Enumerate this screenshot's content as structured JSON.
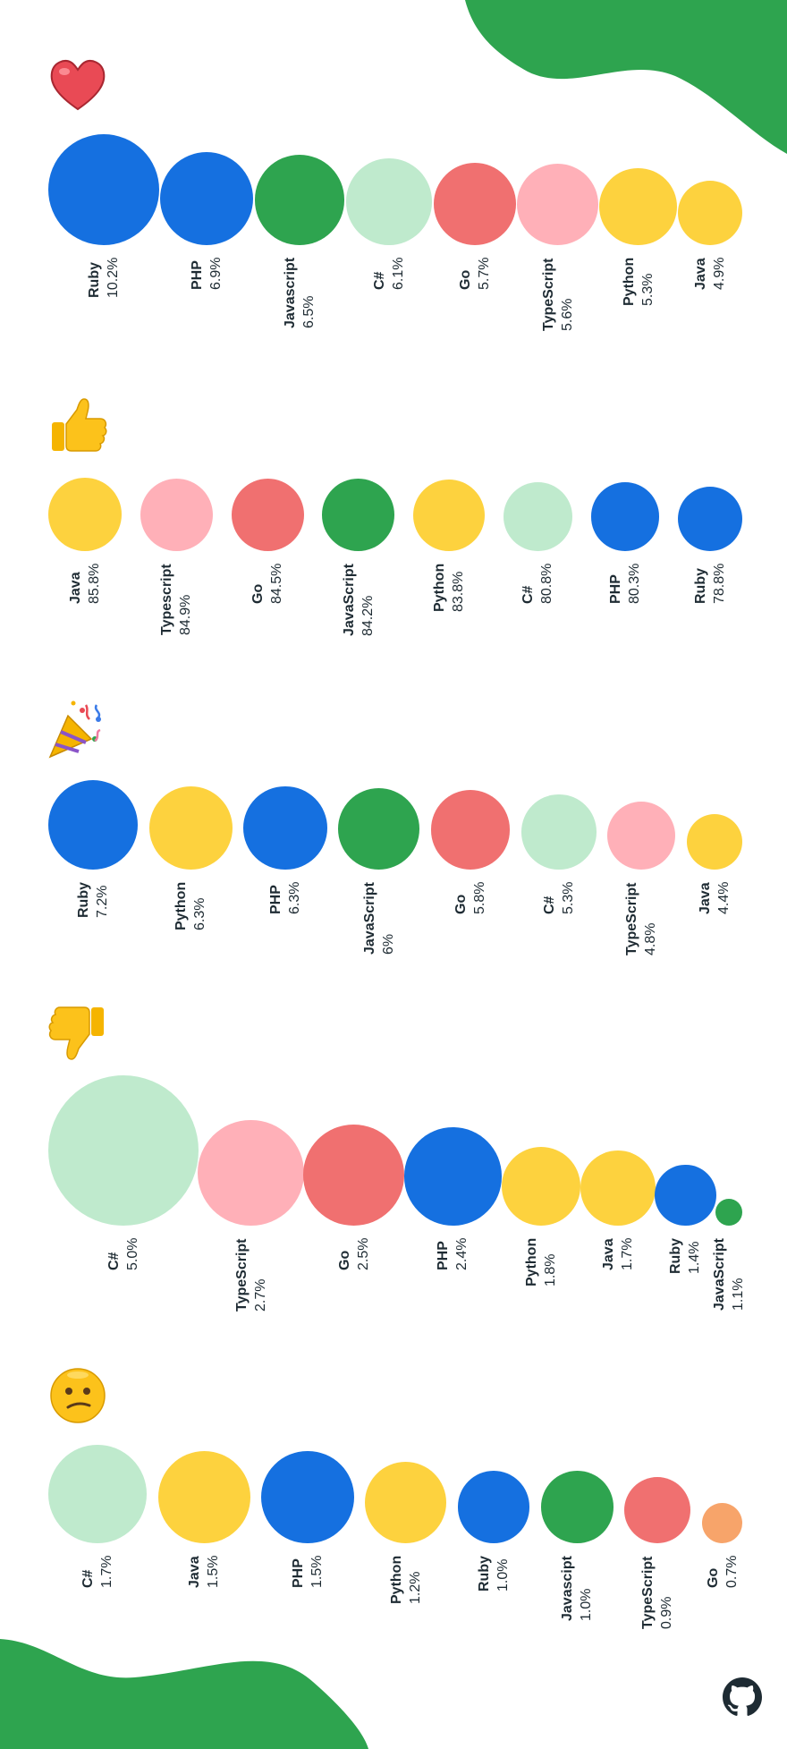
{
  "colors": {
    "background": "#ffffff",
    "blob": "#2ea44f",
    "text": "#1e2b33",
    "palette": {
      "blue": "#1570e0",
      "green": "#2ea44f",
      "mint": "#bfeacd",
      "red": "#f07070",
      "pink": "#ffb0b8",
      "yellow": "#fdd23e",
      "orange": "#f7a46a"
    }
  },
  "footer": {
    "logo_icon": "github-logo-icon"
  },
  "chart_data": [
    {
      "type": "bubble",
      "icon": "heart-icon",
      "categories": [
        "Ruby",
        "PHP",
        "Javascript",
        "C#",
        "Go",
        "TypeScript",
        "Python",
        "Java"
      ],
      "values": [
        10.2,
        6.9,
        6.5,
        6.1,
        5.7,
        5.6,
        5.3,
        4.9
      ],
      "value_labels": [
        "10.2%",
        "6.9%",
        "6.5%",
        "6.1%",
        "5.7%",
        "5.6%",
        "5.3%",
        "4.9%"
      ],
      "colors": [
        "blue",
        "blue",
        "green",
        "mint",
        "red",
        "pink",
        "yellow",
        "yellow"
      ]
    },
    {
      "type": "bubble",
      "icon": "thumbs-up-icon",
      "categories": [
        "Java",
        "Typescript",
        "Go",
        "JavaScript",
        "Python",
        "C#",
        "PHP",
        "Ruby"
      ],
      "values": [
        85.8,
        84.9,
        84.5,
        84.2,
        83.8,
        80.8,
        80.3,
        78.8
      ],
      "value_labels": [
        "85.8%",
        "84.9%",
        "84.5%",
        "84.2%",
        "83.8%",
        "80.8%",
        "80.3%",
        "78.8%"
      ],
      "colors": [
        "yellow",
        "pink",
        "red",
        "green",
        "yellow",
        "mint",
        "blue",
        "blue"
      ]
    },
    {
      "type": "bubble",
      "icon": "party-popper-icon",
      "categories": [
        "Ruby",
        "Python",
        "PHP",
        "JavaScript",
        "Go",
        "C#",
        "TypeScript",
        "Java"
      ],
      "values": [
        7.2,
        6.3,
        6.3,
        6,
        5.8,
        5.3,
        4.8,
        4.4
      ],
      "value_labels": [
        "7.2%",
        "6.3%",
        "6.3%",
        "6%",
        "5.8%",
        "5.3%",
        "4.8%",
        "4.4%"
      ],
      "colors": [
        "blue",
        "yellow",
        "blue",
        "green",
        "red",
        "mint",
        "pink",
        "yellow"
      ]
    },
    {
      "type": "bubble",
      "icon": "thumbs-down-icon",
      "categories": [
        "C#",
        "TypeScript",
        "Go",
        "PHP",
        "Python",
        "Java",
        "Ruby",
        "JavaScript"
      ],
      "values": [
        5.0,
        2.7,
        2.5,
        2.4,
        1.8,
        1.7,
        1.4,
        1.1
      ],
      "value_labels": [
        "5.0%",
        "2.7%",
        "2.5%",
        "2.4%",
        "1.8%",
        "1.7%",
        "1.4%",
        "1.1%"
      ],
      "colors": [
        "mint",
        "pink",
        "red",
        "blue",
        "yellow",
        "yellow",
        "blue",
        "green"
      ]
    },
    {
      "type": "bubble",
      "icon": "confused-face-icon",
      "categories": [
        "C#",
        "Java",
        "PHP",
        "Python",
        "Ruby",
        "Javascipt",
        "TypeScript",
        "Go"
      ],
      "values": [
        1.7,
        1.5,
        1.5,
        1.2,
        1.0,
        1.0,
        0.9,
        0.7
      ],
      "value_labels": [
        "1.7%",
        "1.5%",
        "1.5%",
        "1.2%",
        "1.0%",
        "1.0%",
        "0.9%",
        "0.7%"
      ],
      "colors": [
        "mint",
        "yellow",
        "blue",
        "yellow",
        "blue",
        "green",
        "red",
        "orange"
      ]
    }
  ]
}
